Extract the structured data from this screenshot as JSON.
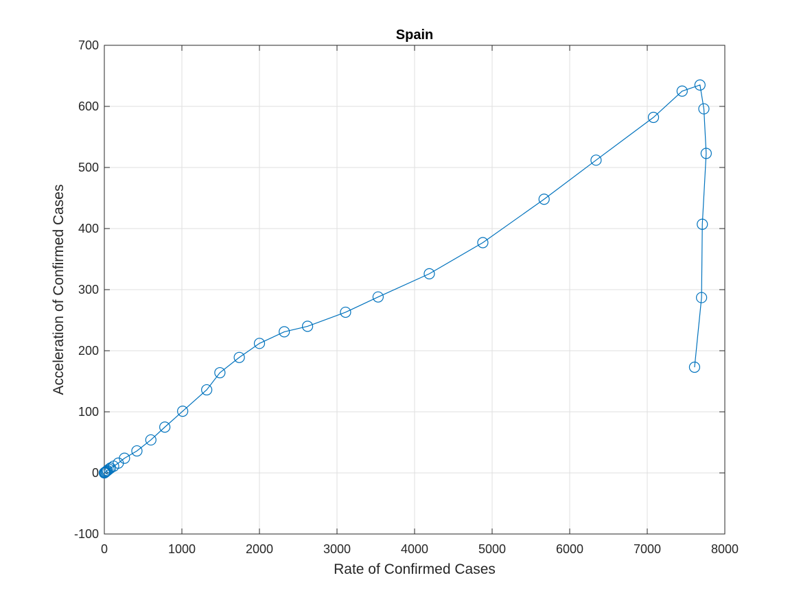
{
  "chart_data": {
    "type": "line",
    "title": "Spain",
    "xlabel": "Rate of Confirmed Cases",
    "ylabel": "Acceleration of Confirmed Cases",
    "xlim": [
      0,
      8000
    ],
    "ylim": [
      -100,
      700
    ],
    "xticks": [
      0,
      1000,
      2000,
      3000,
      4000,
      5000,
      6000,
      7000,
      8000
    ],
    "yticks": [
      -100,
      0,
      100,
      200,
      300,
      400,
      500,
      600,
      700
    ],
    "xtick_labels": [
      "0",
      "1000",
      "2000",
      "3000",
      "4000",
      "5000",
      "6000",
      "7000",
      "8000"
    ],
    "ytick_labels": [
      "-100",
      "0",
      "100",
      "200",
      "300",
      "400",
      "500",
      "600",
      "700"
    ],
    "grid": true,
    "box": true,
    "marker": "circle",
    "color": "#0072BD",
    "series": [
      {
        "x": [
          0,
          5,
          10,
          20,
          30,
          40,
          60,
          80,
          120,
          180,
          260,
          420,
          600,
          780,
          1010,
          1320,
          1490,
          1740,
          2000,
          2320,
          2620,
          3110,
          3530,
          4190,
          4880,
          5670,
          6340,
          7080,
          7450,
          7680,
          7730,
          7760,
          7710,
          7700,
          7610
        ],
        "y": [
          0,
          0.5,
          1,
          2,
          3,
          4,
          6,
          8,
          11,
          16,
          24,
          36,
          54,
          75,
          101,
          136,
          164,
          189,
          212,
          231,
          240,
          263,
          288,
          326,
          377,
          448,
          512,
          582,
          625,
          635,
          596,
          523,
          407,
          287,
          173
        ]
      }
    ]
  }
}
